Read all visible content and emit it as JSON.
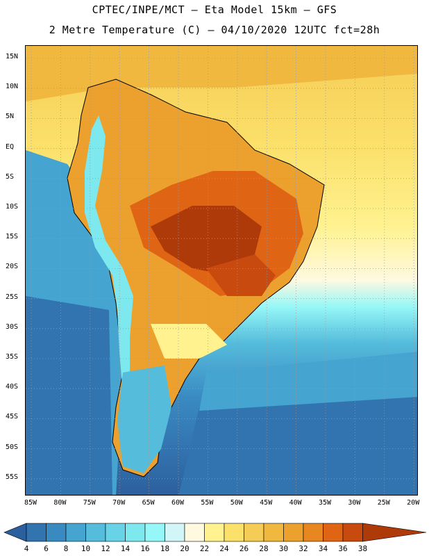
{
  "header": {
    "line1": "CPTEC/INPE/MCT –  Eta Model 15km – GFS",
    "line2": "2 Metre Temperature (C) – 04/10/2020 12UTC fct=28h"
  },
  "map": {
    "latitudes": [
      "15N",
      "10N",
      "5N",
      "EQ",
      "5S",
      "10S",
      "15S",
      "20S",
      "25S",
      "30S",
      "35S",
      "40S",
      "45S",
      "50S",
      "55S"
    ],
    "longitudes": [
      "85W",
      "80W",
      "75W",
      "70W",
      "65W",
      "60W",
      "55W",
      "50W",
      "45W",
      "40W",
      "35W",
      "30W",
      "25W",
      "20W"
    ]
  },
  "legend": {
    "values": [
      "4",
      "6",
      "8",
      "10",
      "12",
      "14",
      "16",
      "18",
      "20",
      "22",
      "24",
      "26",
      "28",
      "30",
      "32",
      "34",
      "36",
      "38"
    ],
    "colors": [
      "#2c5f9e",
      "#3274b0",
      "#3a8ac2",
      "#45a4d0",
      "#55bcdc",
      "#68d2e6",
      "#7de8ee",
      "#95f7f7",
      "#d2f6f8",
      "#fff9e0",
      "#fff28f",
      "#fbe06a",
      "#f5cc55",
      "#f0b83f",
      "#eca12e",
      "#e8861f",
      "#df6414",
      "#c94a0e",
      "#ae3a0a"
    ]
  }
}
